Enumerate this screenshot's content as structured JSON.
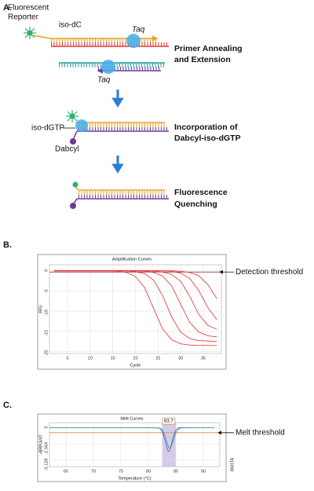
{
  "panel_labels": [
    "A.",
    "B.",
    "C."
  ],
  "diagram": {
    "reporter": [
      "Fluorescent",
      "Reporter"
    ],
    "iso_dc": "iso-dC",
    "taq": "Taq",
    "step1": [
      "Primer Annealing",
      "and Extension"
    ],
    "iso_dgtp": "iso-dGTP",
    "dabcyl": "Dabcyl",
    "step2": [
      "Incorporation of",
      "Dabcyl-iso-dGTP"
    ],
    "step3": [
      "Fluorescence",
      "Quenching"
    ]
  },
  "figure_id": "8501TA",
  "chart_data": [
    {
      "type": "line",
      "title": "Amplification Curves",
      "xlabel": "Cycle",
      "ylabel": "RFU",
      "x": [
        2,
        4,
        6,
        8,
        10,
        12,
        14,
        16,
        18,
        20,
        22,
        24,
        26,
        28,
        30,
        32,
        34,
        36,
        38
      ],
      "series": [
        {
          "color": "#e03030",
          "values": [
            0,
            0,
            0,
            0,
            0,
            0,
            0,
            -0.1,
            -0.4,
            -1.4,
            -4.1,
            -9.3,
            -14.4,
            -17.1,
            -18.1,
            -18.4,
            -18.5,
            -18.5,
            -18.5
          ]
        },
        {
          "color": "#e03030",
          "values": [
            0,
            0,
            0,
            0,
            0,
            0,
            0,
            0,
            0,
            -0.2,
            -0.7,
            -2.3,
            -6.1,
            -11.4,
            -15.2,
            -16.8,
            -17.3,
            -17.4,
            -17.5
          ]
        },
        {
          "color": "#e03030",
          "values": [
            0,
            0,
            0,
            0,
            0,
            0,
            0,
            0,
            0,
            0,
            -0.1,
            -0.4,
            -1.3,
            -3.7,
            -8.3,
            -12.8,
            -15.2,
            -16.1,
            -16.4
          ]
        },
        {
          "color": "#e03030",
          "values": [
            0,
            0,
            0,
            0,
            0,
            0,
            0,
            0,
            0,
            0,
            0,
            -0.1,
            -0.3,
            -0.9,
            -2.6,
            -6.3,
            -10.8,
            -13.5,
            -14.5
          ]
        },
        {
          "color": "#e03030",
          "values": [
            0,
            0,
            0,
            0,
            0,
            0,
            0,
            0,
            0,
            0,
            0,
            0,
            0,
            -0.1,
            -0.6,
            -1.9,
            -4.9,
            -9.1,
            -12.1
          ]
        },
        {
          "color": "#e03030",
          "values": [
            0,
            0,
            0,
            0,
            0,
            0,
            0,
            0,
            0,
            0,
            0,
            0,
            0,
            0,
            -0.1,
            -0.4,
            -1.2,
            -3.4,
            -6.9
          ]
        }
      ],
      "xlim": [
        1,
        39
      ],
      "ylim": [
        -20.5,
        1.5
      ],
      "xticks": [
        5,
        10,
        15,
        20,
        25,
        30,
        35
      ],
      "yticks": [
        0,
        -5,
        -10,
        -15,
        -20
      ],
      "grid": true,
      "threshold": -0.3,
      "threshold_color": "#8b1a1a",
      "threshold_label": "Detection threshold"
    },
    {
      "type": "line",
      "title": "Melt Curves",
      "xlabel": "Temperature (°C)",
      "ylabel": "-d(RFU)/dT",
      "x": [
        62,
        64,
        66,
        68,
        70,
        72,
        74,
        76,
        78,
        80,
        82,
        82.5,
        83,
        83.5,
        83.7,
        84,
        84.5,
        85,
        85.5,
        86,
        88,
        90,
        92
      ],
      "series": [
        {
          "color": "#3a5fbf",
          "values": [
            0,
            0,
            0,
            0,
            0,
            0,
            0,
            0,
            0,
            0,
            -0.07,
            -0.51,
            -1.92,
            -3.59,
            -3.8,
            -3.35,
            -1.56,
            -0.36,
            -0.04,
            0,
            0,
            0,
            0
          ]
        },
        {
          "color": "#2a9a8a",
          "values": [
            0,
            0,
            0,
            0,
            0,
            0,
            0,
            0,
            0,
            0,
            -0.05,
            -0.3,
            -1.2,
            -2.7,
            -3.1,
            -3.3,
            -2.2,
            -0.8,
            -0.2,
            -0.03,
            0,
            0,
            0
          ]
        }
      ],
      "xlim": [
        62,
        93
      ],
      "ylim": [
        -6.2,
        0.8
      ],
      "xticks": [
        65,
        70,
        75,
        80,
        85,
        90
      ],
      "yticks": [
        0,
        -2.564,
        -5.128
      ],
      "grid": true,
      "threshold": -0.8,
      "threshold_color": "#e08040",
      "threshold_label": "Melt threshold",
      "peak": 83.7,
      "highlight": [
        82.5,
        85
      ],
      "highlight_color": "#b9a8d8"
    }
  ]
}
